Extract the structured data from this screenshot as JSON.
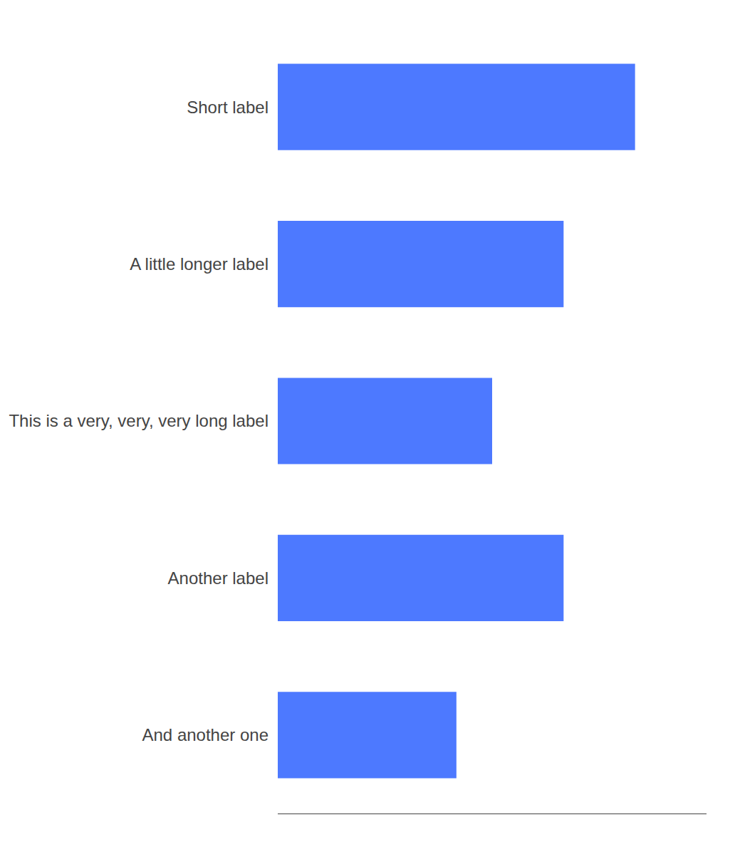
{
  "chart_data": {
    "type": "bar",
    "orientation": "horizontal",
    "categories": [
      "Short label",
      "A little longer label",
      "This is a very, very, very long label",
      "Another label",
      "And another one"
    ],
    "values": [
      5,
      4,
      3,
      4,
      2.5
    ],
    "color": "#4d79ff",
    "xlim": [
      0,
      6
    ],
    "grid": false,
    "tick_labels": "y"
  }
}
